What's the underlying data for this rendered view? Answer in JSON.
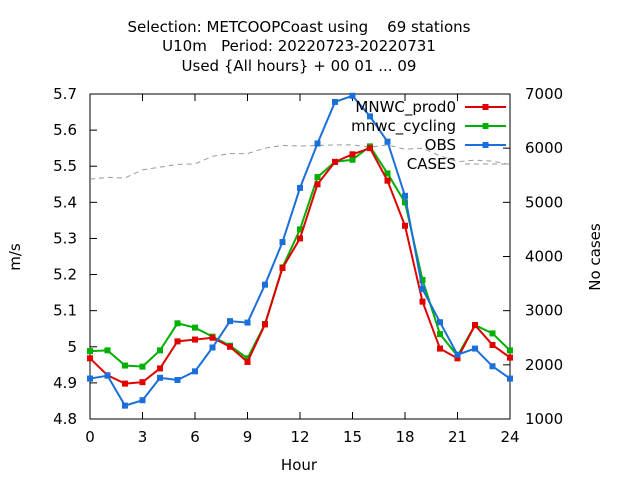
{
  "chart_data": {
    "type": "line",
    "title_lines": [
      "Selection: METCOOPCoast using    69 stations",
      "U10m   Period: 20220723-20220731",
      "Used {All hours} + 00 01 ... 09"
    ],
    "xlabel": "Hour",
    "ylabel": "m/s",
    "y2label": "No cases",
    "xlim": [
      0,
      24
    ],
    "ylim": [
      4.8,
      5.7
    ],
    "y2lim": [
      1000,
      7000
    ],
    "xticks": [
      "0",
      "3",
      "6",
      "9",
      "12",
      "15",
      "18",
      "21",
      "24"
    ],
    "yticks": [
      "4.8",
      "4.9",
      "5",
      "5.1",
      "5.2",
      "5.3",
      "5.4",
      "5.5",
      "5.6",
      "5.7"
    ],
    "y2ticks": [
      "1000",
      "2000",
      "3000",
      "4000",
      "5000",
      "6000",
      "7000"
    ],
    "grid": false,
    "legend_position": "top-right",
    "x": [
      0,
      1,
      2,
      3,
      4,
      5,
      6,
      7,
      8,
      9,
      10,
      11,
      12,
      13,
      14,
      15,
      16,
      17,
      18,
      19,
      20,
      21,
      22,
      23,
      24
    ],
    "series": [
      {
        "name": "MNWC_prod0",
        "color": "#e00000",
        "marker": "filled-square",
        "axis": "left",
        "values": [
          4.968,
          4.921,
          4.898,
          4.902,
          4.94,
          5.015,
          5.02,
          5.025,
          5.0,
          4.958,
          5.062,
          5.218,
          5.3,
          5.45,
          5.512,
          5.533,
          5.55,
          5.46,
          5.335,
          5.125,
          4.995,
          4.968,
          5.06,
          5.005,
          4.97
        ]
      },
      {
        "name": "mnwc_cycling",
        "color": "#00b000",
        "marker": "filled-square",
        "axis": "left",
        "values": [
          4.988,
          4.99,
          4.948,
          4.945,
          4.99,
          5.065,
          5.053,
          5.028,
          5.003,
          4.968,
          5.063,
          5.22,
          5.325,
          5.47,
          5.512,
          5.518,
          5.555,
          5.48,
          5.4,
          5.185,
          5.035,
          4.975,
          5.06,
          5.037,
          4.99
        ]
      },
      {
        "name": "OBS",
        "color": "#1a70d8",
        "marker": "filled-square",
        "axis": "left",
        "values": [
          4.912,
          4.92,
          4.837,
          4.852,
          4.914,
          4.908,
          4.932,
          4.998,
          5.071,
          5.067,
          5.172,
          5.29,
          5.44,
          5.563,
          5.678,
          5.695,
          5.638,
          5.568,
          5.418,
          5.16,
          5.068,
          4.978,
          4.995,
          4.946,
          4.912
        ]
      },
      {
        "name": "CASES",
        "color": "#999999",
        "dash": true,
        "axis": "right",
        "values": [
          5430,
          5460,
          5450,
          5600,
          5650,
          5700,
          5710,
          5850,
          5900,
          5900,
          6000,
          6050,
          6040,
          6050,
          6060,
          6060,
          6020,
          6060,
          5980,
          6000,
          5860,
          5750,
          5780,
          5760,
          5700
        ]
      }
    ]
  }
}
